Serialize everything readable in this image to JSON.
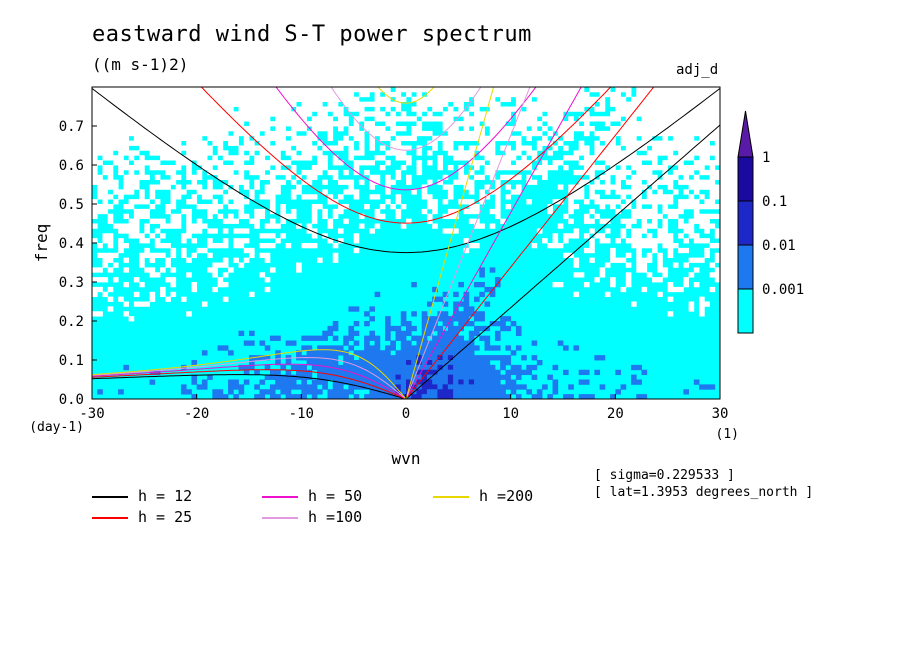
{
  "header": {
    "title": "eastward wind S-T power spectrum",
    "units": "((m s-1)2)",
    "tag": "adj_d"
  },
  "info": {
    "line1": "[ sigma=0.229533 ]",
    "line2": "[ lat=1.3953 degrees_north ]"
  },
  "chart_data": {
    "type": "heatmap",
    "title": "eastward wind S-T power spectrum",
    "subtitle": "((m s-1)2)",
    "xlabel": "wvn",
    "xunit": "(1)",
    "ylabel": "freq",
    "yunit": "(day-1)",
    "xlim": [
      -30,
      30
    ],
    "ylim": [
      0,
      0.8
    ],
    "xticks": [
      -30,
      -20,
      -10,
      0,
      10,
      20,
      30
    ],
    "xtick_labels": [
      "-30",
      "-20",
      "-10",
      "0",
      "10",
      "20",
      "30"
    ],
    "yticks": [
      0.0,
      0.1,
      0.2,
      0.3,
      0.4,
      0.5,
      0.6,
      0.7
    ],
    "ytick_labels": [
      "0.0",
      "0.1",
      "0.2",
      "0.3",
      "0.4",
      "0.5",
      "0.6",
      "0.7"
    ],
    "colorbar": {
      "levels": [
        0.001,
        0.01,
        0.1,
        1
      ],
      "labels": [
        "0.001",
        "0.01",
        "0.1",
        "1"
      ],
      "colors": [
        "#00ffff",
        "#1e78f0",
        "#1e28c8",
        "#1a0aa0",
        "#5a1aa8"
      ]
    },
    "dispersion_curves": [
      {
        "label": "h = 12",
        "h": 12,
        "color": "#000000"
      },
      {
        "label": "h = 25",
        "h": 25,
        "color": "#ff0000"
      },
      {
        "label": "h = 50",
        "h": 50,
        "color": "#ee11cc"
      },
      {
        "label": "h =100",
        "h": 100,
        "color": "#e29ae0"
      },
      {
        "label": "h =200",
        "h": 200,
        "color": "#e8d800"
      }
    ]
  }
}
